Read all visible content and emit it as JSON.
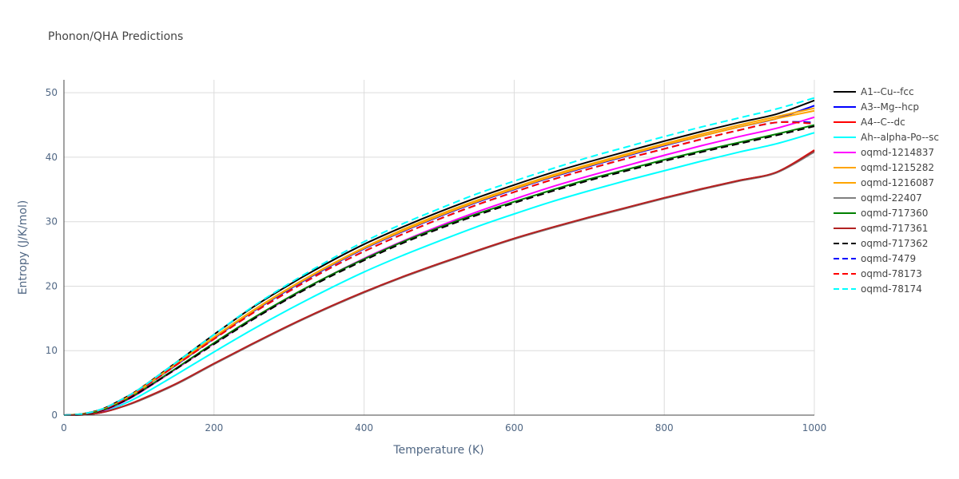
{
  "chart_data": {
    "type": "line",
    "title": "Phonon/QHA Predictions",
    "xlabel": "Temperature (K)",
    "ylabel": "Entropy (J/K/mol)",
    "xlim": [
      0,
      1000
    ],
    "ylim": [
      0,
      52
    ],
    "xticks": [
      0,
      200,
      400,
      600,
      800,
      1000
    ],
    "yticks": [
      0,
      10,
      20,
      30,
      40,
      50
    ],
    "grid": true,
    "legend": "right",
    "x": [
      0,
      25,
      50,
      75,
      100,
      150,
      200,
      250,
      300,
      350,
      400,
      450,
      500,
      550,
      600,
      650,
      700,
      750,
      800,
      850,
      900,
      950,
      1000
    ],
    "series": [
      {
        "name": "A1--Cu--fcc",
        "color": "#000000",
        "dash": "solid",
        "values": [
          0,
          0.2,
          0.9,
          2.3,
          4.0,
          8.2,
          12.5,
          16.6,
          20.2,
          23.5,
          26.5,
          29.1,
          31.5,
          33.7,
          35.7,
          37.6,
          39.3,
          40.9,
          42.5,
          44.0,
          45.4,
          46.7,
          48.8
        ]
      },
      {
        "name": "A3--Mg--hcp",
        "color": "#0000ff",
        "dash": "solid",
        "values": [
          0,
          0.15,
          0.8,
          2.1,
          3.8,
          7.8,
          11.9,
          15.9,
          19.5,
          22.8,
          25.8,
          28.4,
          30.8,
          33.0,
          35.0,
          36.9,
          38.6,
          40.2,
          41.8,
          43.3,
          44.7,
          46.0,
          48.0
        ]
      },
      {
        "name": "A4--C--dc",
        "color": "#ff0000",
        "dash": "solid",
        "values": [
          0,
          0.05,
          0.4,
          1.2,
          2.3,
          4.9,
          8.0,
          11.0,
          13.9,
          16.6,
          19.1,
          21.4,
          23.5,
          25.5,
          27.4,
          29.1,
          30.7,
          32.2,
          33.7,
          35.1,
          36.4,
          37.7,
          41.1
        ]
      },
      {
        "name": "Ah--alpha-Po--sc",
        "color": "#00ffff",
        "dash": "solid",
        "values": [
          0,
          0.1,
          0.5,
          1.5,
          2.9,
          6.3,
          9.8,
          13.2,
          16.4,
          19.4,
          22.2,
          24.7,
          27.0,
          29.2,
          31.2,
          33.1,
          34.8,
          36.4,
          37.9,
          39.4,
          40.8,
          42.1,
          43.8
        ]
      },
      {
        "name": "oqmd-1214837",
        "color": "#ff00ff",
        "dash": "solid",
        "values": [
          0,
          0.1,
          0.6,
          1.8,
          3.4,
          7.2,
          11.1,
          14.8,
          18.2,
          21.4,
          24.3,
          26.9,
          29.3,
          31.5,
          33.5,
          35.4,
          37.1,
          38.7,
          40.3,
          41.8,
          43.2,
          44.5,
          46.2
        ]
      },
      {
        "name": "oqmd-1215282",
        "color": "#ffa500",
        "dash": "solid",
        "values": [
          0,
          0.15,
          0.8,
          2.1,
          3.8,
          7.9,
          12.0,
          16.0,
          19.6,
          22.9,
          25.9,
          28.5,
          30.9,
          33.1,
          35.1,
          37.0,
          38.7,
          40.3,
          41.9,
          43.3,
          44.7,
          46.0,
          47.2
        ]
      },
      {
        "name": "oqmd-1216087",
        "color": "#ffa500",
        "dash": "solid",
        "values": [
          0,
          0.15,
          0.8,
          2.1,
          3.9,
          8.0,
          12.1,
          16.1,
          19.7,
          23.0,
          26.0,
          28.7,
          31.1,
          33.3,
          35.3,
          37.2,
          38.9,
          40.5,
          42.1,
          43.6,
          45.0,
          46.3,
          47.6
        ]
      },
      {
        "name": "oqmd-22407",
        "color": "#808080",
        "dash": "solid",
        "values": [
          0,
          0.05,
          0.4,
          1.2,
          2.2,
          4.8,
          7.9,
          10.9,
          13.8,
          16.5,
          19.0,
          21.3,
          23.4,
          25.4,
          27.3,
          29.0,
          30.6,
          32.1,
          33.6,
          35.0,
          36.3,
          37.6,
          40.8
        ]
      },
      {
        "name": "oqmd-717360",
        "color": "#008000",
        "dash": "solid",
        "values": [
          0,
          0.1,
          0.7,
          1.9,
          3.5,
          7.3,
          11.2,
          14.9,
          18.3,
          21.4,
          24.2,
          26.8,
          29.1,
          31.2,
          33.1,
          34.9,
          36.6,
          38.1,
          39.6,
          41.0,
          42.3,
          43.6,
          45.0
        ]
      },
      {
        "name": "oqmd-717361",
        "color": "#b22222",
        "dash": "solid",
        "values": [
          0,
          0.05,
          0.4,
          1.2,
          2.3,
          4.9,
          8.0,
          11.0,
          13.9,
          16.6,
          19.1,
          21.4,
          23.5,
          25.5,
          27.4,
          29.1,
          30.7,
          32.2,
          33.7,
          35.1,
          36.4,
          37.7,
          41.0
        ]
      },
      {
        "name": "oqmd-717362",
        "color": "#000000",
        "dash": "dash",
        "values": [
          0,
          0.1,
          0.7,
          1.9,
          3.5,
          7.2,
          11.0,
          14.7,
          18.1,
          21.2,
          24.0,
          26.6,
          28.9,
          31.0,
          32.9,
          34.7,
          36.4,
          37.9,
          39.4,
          40.8,
          42.1,
          43.4,
          44.8
        ]
      },
      {
        "name": "oqmd-7479",
        "color": "#0000ff",
        "dash": "dash",
        "values": [
          0,
          0.15,
          0.8,
          2.1,
          3.8,
          7.8,
          11.8,
          15.7,
          19.2,
          22.5,
          25.4,
          28.0,
          30.4,
          32.6,
          34.6,
          36.5,
          38.2,
          39.8,
          41.3,
          42.8,
          44.2,
          45.4,
          45.4
        ]
      },
      {
        "name": "oqmd-78173",
        "color": "#ff0000",
        "dash": "dash",
        "values": [
          0,
          0.15,
          0.8,
          2.1,
          3.8,
          7.8,
          11.8,
          15.7,
          19.2,
          22.5,
          25.4,
          28.0,
          30.4,
          32.6,
          34.6,
          36.5,
          38.2,
          39.8,
          41.3,
          42.8,
          44.2,
          45.4,
          45.2
        ]
      },
      {
        "name": "oqmd-78174",
        "color": "#00ffff",
        "dash": "dash",
        "values": [
          0,
          0.2,
          0.9,
          2.3,
          4.0,
          8.2,
          12.5,
          16.7,
          20.4,
          23.8,
          26.9,
          29.6,
          32.0,
          34.3,
          36.3,
          38.2,
          40.0,
          41.6,
          43.2,
          44.7,
          46.1,
          47.5,
          49.2
        ]
      }
    ]
  }
}
